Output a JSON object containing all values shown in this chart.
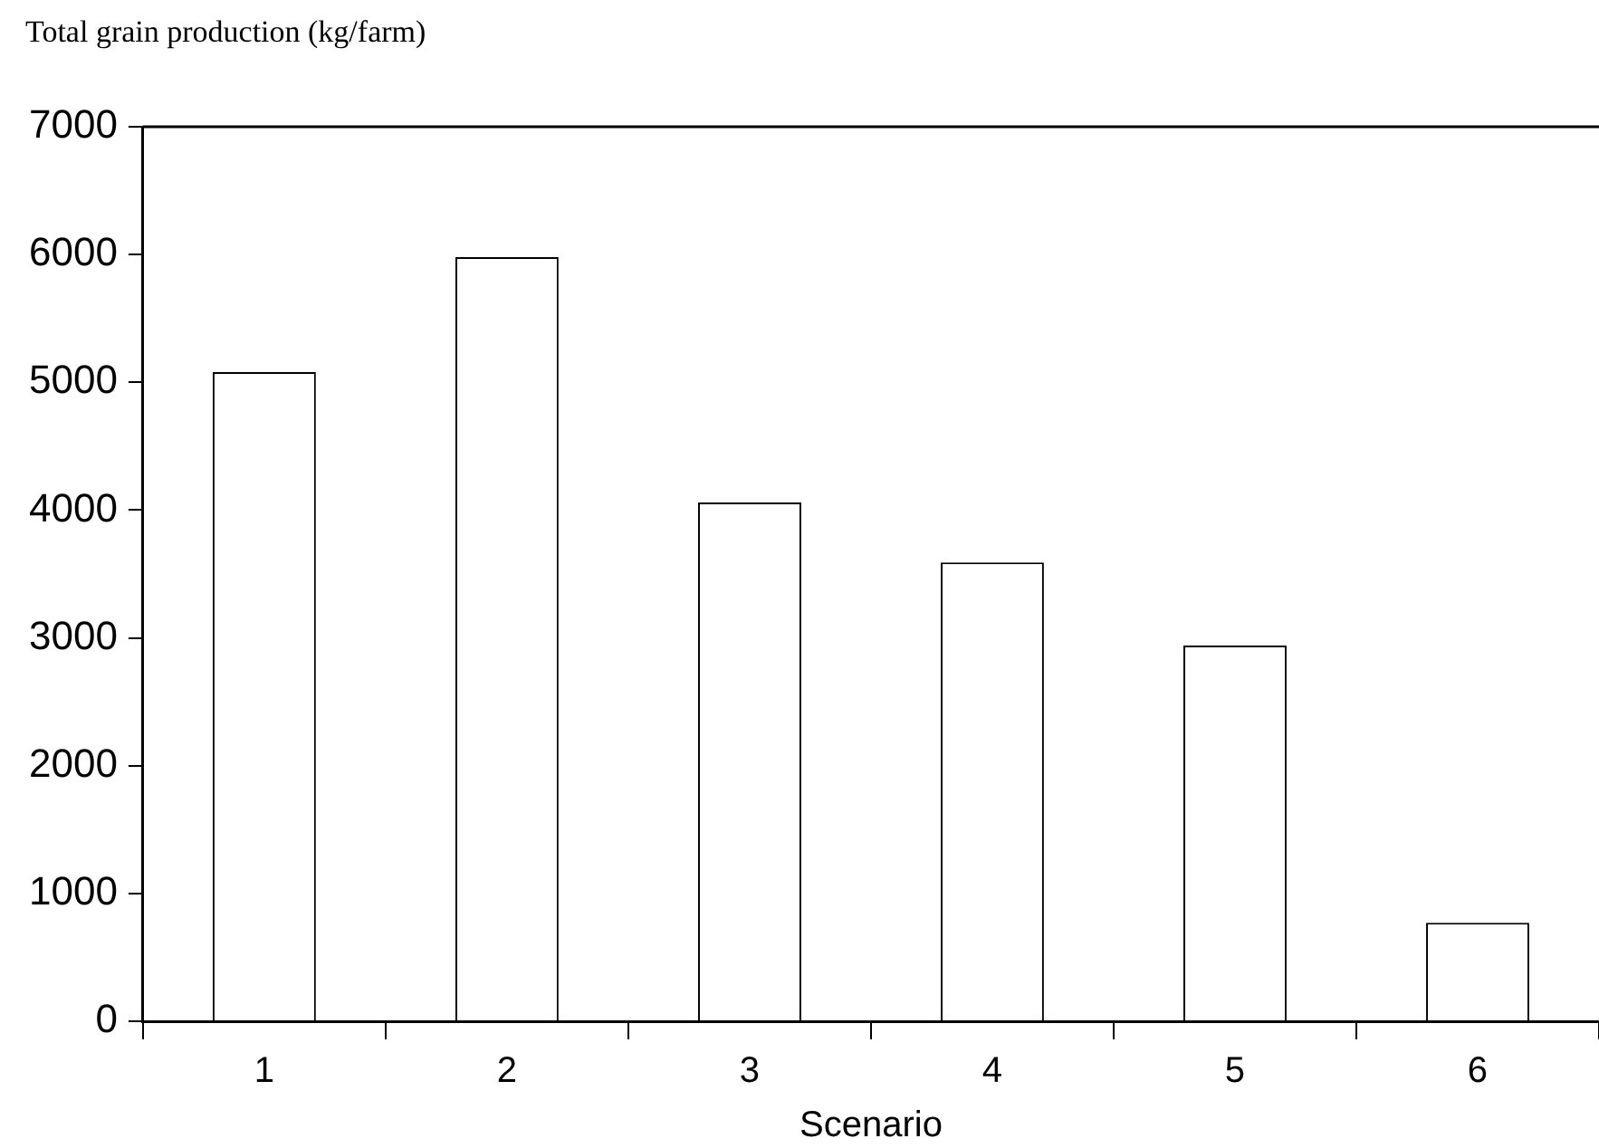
{
  "chart_data": {
    "type": "bar",
    "ylabel": "Total grain production (kg/farm)",
    "xlabel": "Scenario",
    "categories": [
      "1",
      "2",
      "3",
      "4",
      "5",
      "6"
    ],
    "values": [
      5080,
      5980,
      4060,
      3590,
      2940,
      770
    ],
    "color": "#ffffff",
    "ylim": [
      0,
      7000
    ],
    "yticks": [
      0,
      1000,
      2000,
      3000,
      4000,
      5000,
      6000,
      7000
    ],
    "grid": false,
    "legend": false
  }
}
